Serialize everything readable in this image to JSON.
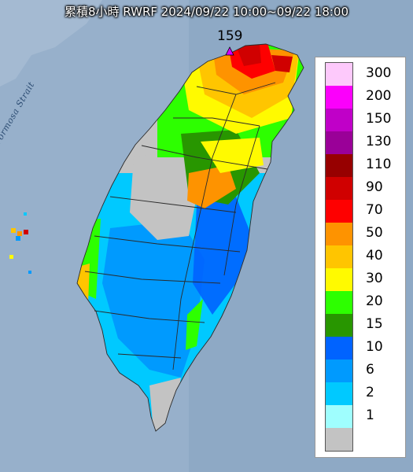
{
  "title": "累積8小時 RWRF 2024/09/22 10:00~09/22 18:00",
  "max_value": "159",
  "strait_label": "Formosa Strait",
  "legend": [
    {
      "label": "300",
      "color": "#fdc9fb"
    },
    {
      "label": "200",
      "color": "#fb00fb"
    },
    {
      "label": "150",
      "color": "#c000c8"
    },
    {
      "label": "130",
      "color": "#9a0098"
    },
    {
      "label": "110",
      "color": "#970000"
    },
    {
      "label": "90",
      "color": "#d00000"
    },
    {
      "label": "70",
      "color": "#fe0000"
    },
    {
      "label": "50",
      "color": "#fe9300"
    },
    {
      "label": "40",
      "color": "#ffc500"
    },
    {
      "label": "30",
      "color": "#fffa00"
    },
    {
      "label": "20",
      "color": "#2dff00"
    },
    {
      "label": "15",
      "color": "#289600"
    },
    {
      "label": "10",
      "color": "#0063ff"
    },
    {
      "label": "6",
      "color": "#009afe"
    },
    {
      "label": "2",
      "color": "#00c9ff"
    },
    {
      "label": "1",
      "color": "#9ffefe"
    },
    {
      "label": "",
      "color": "#c3c3c3"
    }
  ]
}
